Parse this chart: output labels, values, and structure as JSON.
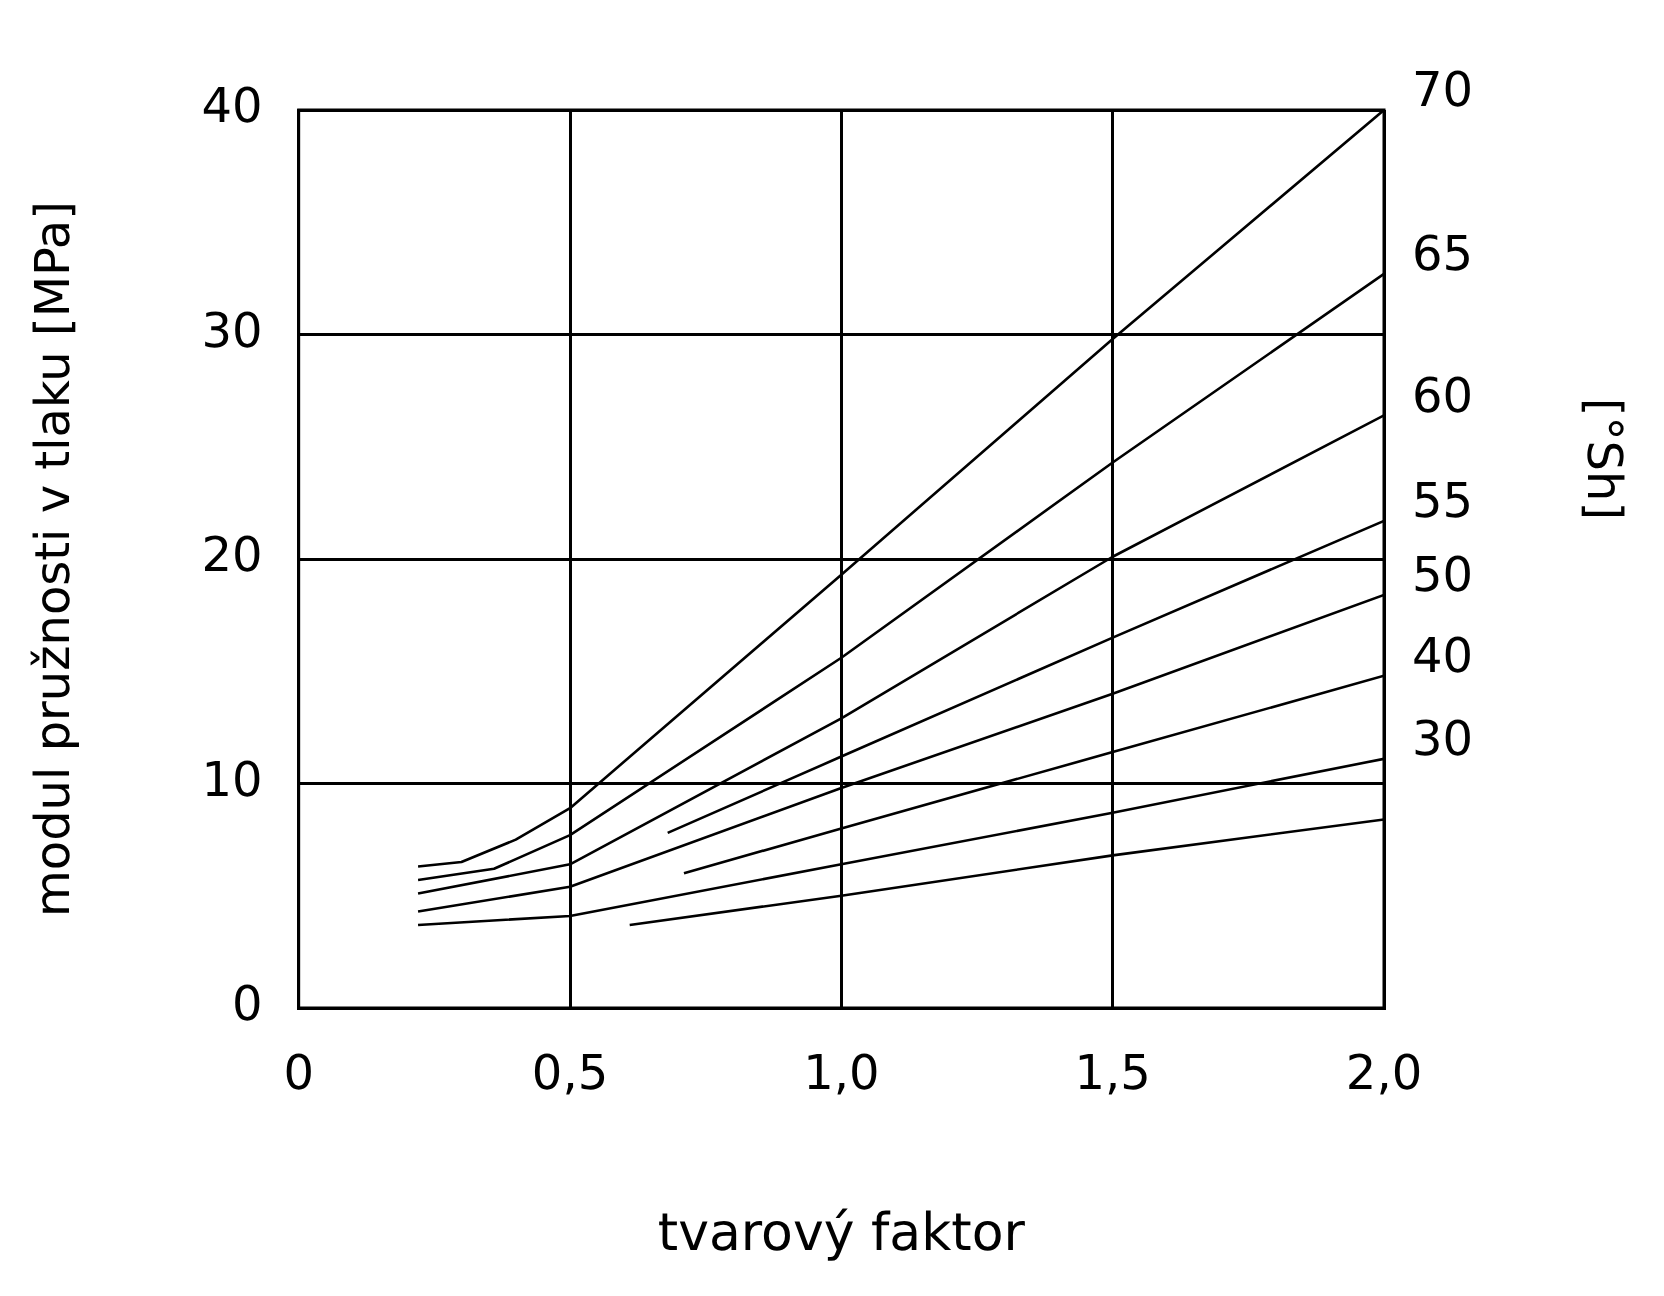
{
  "chart_data": {
    "type": "line",
    "xlabel": "tvarový faktor",
    "ylabel": "modul pružnosti v tlaku [MPa]",
    "legend_title": "[°Sh]",
    "xlim": [
      0,
      2
    ],
    "ylim": [
      0,
      40
    ],
    "xticks": [
      0,
      {
        "value": 0.5,
        "label": "0,5"
      },
      {
        "value": 1,
        "label": "1,0"
      },
      {
        "value": 1.5,
        "label": "1,5"
      },
      {
        "value": 2,
        "label": "2,0"
      }
    ],
    "yticks": [
      0,
      10,
      20,
      30,
      40
    ],
    "grid": true,
    "legend": false,
    "marker": "none",
    "line_style": "solid",
    "series": [
      {
        "name": "70",
        "color": "#000000",
        "x": [
          0.22,
          0.3,
          0.4,
          0.5,
          1.0,
          1.5,
          2.0
        ],
        "values": [
          6.3,
          6.5,
          7.5,
          8.9,
          19.3,
          29.8,
          40
        ]
      },
      {
        "name": "65",
        "color": "#000000",
        "x": [
          0.22,
          0.36,
          0.5,
          1.0,
          1.5,
          2.0
        ],
        "values": [
          5.7,
          6.2,
          7.7,
          15.6,
          24.3,
          32.7
        ]
      },
      {
        "name": "60",
        "color": "#000000",
        "x": [
          0.22,
          0.5,
          1.0,
          1.5,
          2.0
        ],
        "values": [
          5.1,
          6.4,
          12.9,
          20.1,
          26.4
        ]
      },
      {
        "name": "55",
        "color": "#000000",
        "x": [
          0.68,
          1.0,
          1.5,
          2.0
        ],
        "values": [
          7.8,
          11.2,
          16.5,
          21.7
        ]
      },
      {
        "name": "50",
        "color": "#000000",
        "x": [
          0.22,
          0.5,
          1.0,
          1.5,
          2.0
        ],
        "values": [
          4.3,
          5.4,
          9.8,
          14.0,
          18.4
        ]
      },
      {
        "name": "40",
        "color": "#000000",
        "x": [
          0.71,
          1.0,
          1.5,
          2.0
        ],
        "values": [
          6.0,
          8.0,
          11.4,
          14.8
        ]
      },
      {
        "name": "30",
        "color": "#000000",
        "x": [
          0.22,
          0.5,
          1.0,
          1.5,
          2.0
        ],
        "values": [
          3.7,
          4.1,
          6.4,
          8.7,
          11.1
        ]
      },
      {
        "color": "#000000",
        "x": [
          0.61,
          1.0,
          1.5,
          2.0
        ],
        "values": [
          3.7,
          5.0,
          6.8,
          8.4
        ]
      }
    ]
  }
}
